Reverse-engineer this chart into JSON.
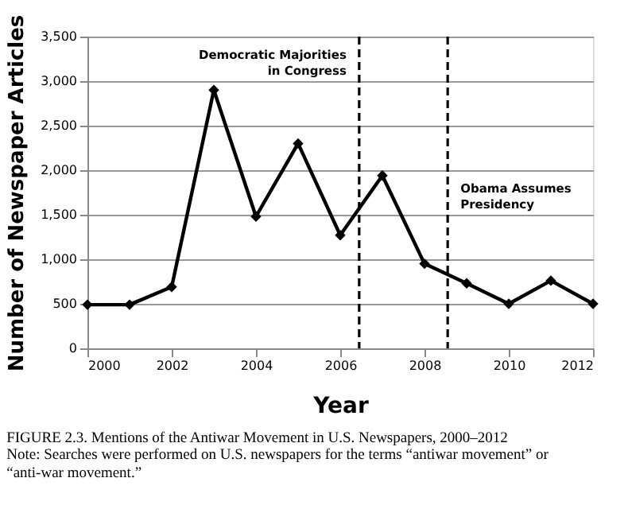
{
  "chart_data": {
    "type": "line",
    "title": "FIGURE 2.3. Mentions of the Antiwar Movement in U.S. Newspapers, 2000–2012",
    "xlabel": "Year",
    "ylabel": "Number of Newspaper Articles",
    "x": [
      2000,
      2001,
      2002,
      2003,
      2004,
      2005,
      2006,
      2007,
      2008,
      2009,
      2010,
      2011,
      2012
    ],
    "series": [
      {
        "color": "#000000",
        "values": [
          490,
          490,
          690,
          2900,
          1480,
          2300,
          1270,
          1940,
          950,
          730,
          500,
          760,
          500
        ]
      }
    ],
    "xlim": [
      2000,
      2012
    ],
    "xticks": [
      2000,
      2002,
      2004,
      2006,
      2008,
      2010,
      2012
    ],
    "ylim": [
      0,
      3500
    ],
    "yticks": [
      0,
      500,
      {
        "value": 1000,
        "label": "1,000"
      },
      {
        "value": 1500,
        "label": "1,500"
      },
      {
        "value": 2000,
        "label": "2,000"
      },
      {
        "value": 2500,
        "label": "2,500"
      },
      {
        "value": 3000,
        "label": "3,000"
      },
      {
        "value": 3500,
        "label": "3,500"
      }
    ],
    "ref_lines": [
      {
        "axis": "x",
        "value": 2006.45,
        "label": "Democratic Majorities in Congress",
        "line_style": "dashed",
        "color": "#000000"
      },
      {
        "axis": "x",
        "value": 2008.55,
        "label": "Obama Assumes Presidency",
        "line_style": "dashed",
        "color": "#000000"
      }
    ],
    "annotations": [
      "Note: Searches were performed on U.S. newspapers for the terms “antiwar movement” or “anti-war movement.”"
    ],
    "grid": "y",
    "marker": "diamond",
    "line_style": "solid"
  }
}
